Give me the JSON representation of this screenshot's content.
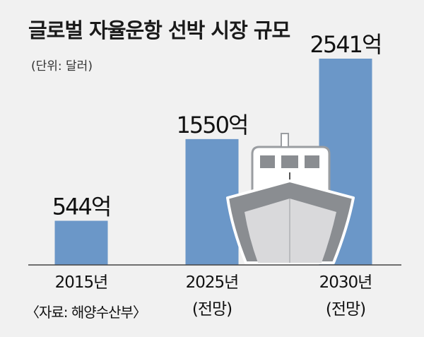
{
  "title": "글로벌 자율운항 선박 시장 규모",
  "unit_note": "(단위: 달러)",
  "source": "〈자료: 해양수산부〉",
  "colors": {
    "bar": "#6b97c8",
    "background": "#f1f1f1",
    "axis": "#444444",
    "ship_hull": "#8a8d91",
    "ship_light": "#d9d9db"
  },
  "chart_data": {
    "type": "bar",
    "categories": [
      "2015년",
      "2025년",
      "2030년"
    ],
    "category_notes": [
      "",
      "(전망)",
      "(전망)"
    ],
    "values": [
      544,
      1550,
      2541
    ],
    "value_labels": [
      "544억",
      "1550억",
      "2541억"
    ],
    "title": "글로벌 자율운항 선박 시장 규모",
    "xlabel": "",
    "ylabel": "",
    "ylim": [
      0,
      2541
    ],
    "grid": false,
    "decoration": "ship-icon"
  }
}
